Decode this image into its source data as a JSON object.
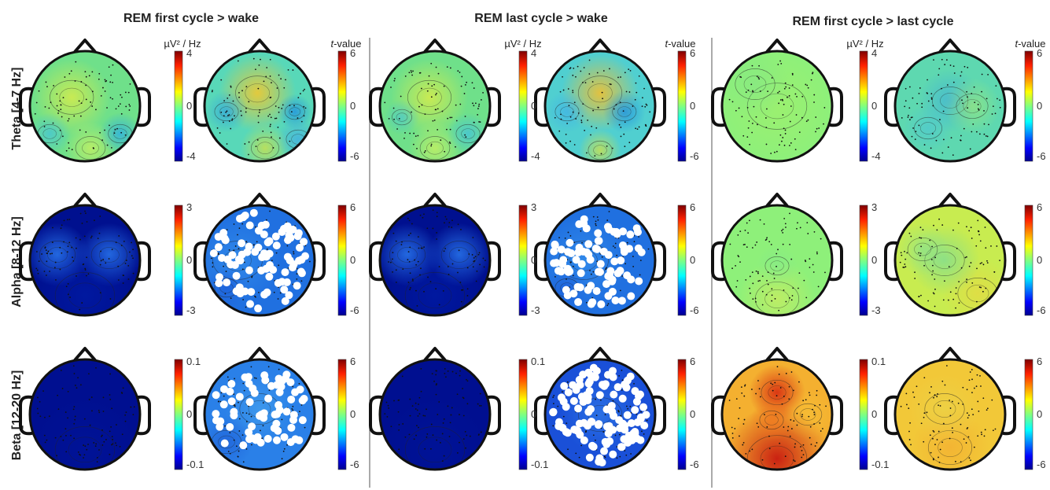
{
  "columns": [
    {
      "title": "REM first cycle > wake",
      "power_unit": "µV² / Hz",
      "t_unit_italic": "t",
      "t_unit_rest": "-value"
    },
    {
      "title": "REM last cycle > wake",
      "power_unit": "µV² / Hz",
      "t_unit_italic": "t",
      "t_unit_rest": "-value"
    },
    {
      "title": "REM first cycle > last cycle",
      "power_unit": "µV² / Hz",
      "t_unit_italic": "t",
      "t_unit_rest": "-value"
    }
  ],
  "rows": [
    {
      "label": "Theta [4-7 Hz]",
      "power_ticks": [
        "4",
        "0",
        "-4"
      ],
      "t_ticks": [
        "6",
        "0",
        "-6"
      ]
    },
    {
      "label": "Alpha [8-12 Hz]",
      "power_ticks": [
        "3",
        "0",
        "-3"
      ],
      "t_ticks": [
        "6",
        "0",
        "-6"
      ]
    },
    {
      "label": "Beta [12-20 Hz]",
      "power_ticks": [
        "0.1",
        "0",
        "-0.1"
      ],
      "t_ticks": [
        "6",
        "0",
        "-6"
      ]
    }
  ],
  "colormap": "jet",
  "colors": {
    "deep_blue": "#00008f",
    "blue": "#1a3fd6",
    "cyan": "#3ec8e6",
    "green": "#8af06e",
    "yellow": "#f2d43a",
    "orange": "#f08a1e",
    "red": "#c81a10"
  },
  "maps": [
    [
      {
        "base": "#6fe08a",
        "blobs": [
          [
            "#d8ec4a",
            0.38,
            0.42,
            0.22,
            0.85
          ],
          [
            "#c8f060",
            0.55,
            0.88,
            0.15,
            0.8
          ],
          [
            "#2fb0e0",
            0.82,
            0.75,
            0.12,
            0.85
          ],
          [
            "#40c0e0",
            0.18,
            0.75,
            0.12,
            0.7
          ]
        ],
        "sig": 0
      },
      {
        "base": "#58d8b8",
        "blobs": [
          [
            "#f2c830",
            0.48,
            0.38,
            0.22,
            0.9
          ],
          [
            "#2090e0",
            0.82,
            0.55,
            0.1,
            0.8
          ],
          [
            "#2fa0e0",
            0.2,
            0.55,
            0.12,
            0.7
          ],
          [
            "#c8e050",
            0.55,
            0.88,
            0.14,
            0.85
          ],
          [
            "#40a8e8",
            0.85,
            0.8,
            0.12,
            0.7
          ]
        ],
        "sig": 0
      },
      {
        "base": "#6fe08a",
        "blobs": [
          [
            "#d8ec4a",
            0.45,
            0.42,
            0.22,
            0.85
          ],
          [
            "#c8f060",
            0.5,
            0.88,
            0.15,
            0.8
          ],
          [
            "#40c0e0",
            0.8,
            0.75,
            0.12,
            0.75
          ],
          [
            "#40c0e0",
            0.2,
            0.6,
            0.1,
            0.6
          ]
        ],
        "sig": 0
      },
      {
        "base": "#50cfd0",
        "blobs": [
          [
            "#f2c030",
            0.5,
            0.38,
            0.22,
            0.9
          ],
          [
            "#2090e0",
            0.72,
            0.55,
            0.12,
            0.8
          ],
          [
            "#40b0e8",
            0.2,
            0.55,
            0.12,
            0.7
          ],
          [
            "#c8e050",
            0.5,
            0.9,
            0.12,
            0.85
          ]
        ],
        "sig": 0
      },
      {
        "base": "#8ef07a",
        "blobs": [
          [
            "#b0f060",
            0.5,
            0.5,
            0.3,
            0.4
          ],
          [
            "#78e090",
            0.3,
            0.3,
            0.2,
            0.4
          ]
        ],
        "sig": 0
      },
      {
        "base": "#5ed8b0",
        "blobs": [
          [
            "#3aa8e0",
            0.5,
            0.45,
            0.18,
            0.6
          ],
          [
            "#b8f060",
            0.7,
            0.5,
            0.16,
            0.5
          ],
          [
            "#48c0e0",
            0.3,
            0.7,
            0.14,
            0.5
          ]
        ],
        "sig": 0
      }
    ],
    [
      {
        "base": "#00108f",
        "blobs": [
          [
            "#2a7af0",
            0.25,
            0.45,
            0.18,
            0.85
          ],
          [
            "#2a7af0",
            0.72,
            0.45,
            0.18,
            0.85
          ],
          [
            "#0020b0",
            0.5,
            0.82,
            0.3,
            0.5
          ]
        ],
        "sig": 0
      },
      {
        "base": "#2070e0",
        "blobs": [
          [
            "#3a98f0",
            0.3,
            0.5,
            0.25,
            0.6
          ],
          [
            "#1a58d8",
            0.2,
            0.75,
            0.12,
            0.6
          ]
        ],
        "sig": 1
      },
      {
        "base": "#00108f",
        "blobs": [
          [
            "#2a7af0",
            0.25,
            0.45,
            0.18,
            0.85
          ],
          [
            "#2a7af0",
            0.72,
            0.45,
            0.18,
            0.85
          ],
          [
            "#0020b0",
            0.5,
            0.82,
            0.3,
            0.5
          ]
        ],
        "sig": 0
      },
      {
        "base": "#2070e0",
        "blobs": [
          [
            "#3a98f0",
            0.35,
            0.5,
            0.25,
            0.6
          ],
          [
            "#1a58d8",
            0.2,
            0.75,
            0.12,
            0.6
          ]
        ],
        "sig": 1
      },
      {
        "base": "#8ef07a",
        "blobs": [
          [
            "#c8ec60",
            0.5,
            0.85,
            0.22,
            0.8
          ],
          [
            "#80e890",
            0.5,
            0.55,
            0.12,
            0.5
          ]
        ],
        "sig": 0
      },
      {
        "base": "#c8ec50",
        "blobs": [
          [
            "#e8d840",
            0.75,
            0.8,
            0.2,
            0.7
          ],
          [
            "#68d8a8",
            0.45,
            0.5,
            0.2,
            0.6
          ],
          [
            "#78e0a0",
            0.25,
            0.4,
            0.15,
            0.5
          ]
        ],
        "sig": 0
      }
    ],
    [
      {
        "base": "#000f90",
        "blobs": [
          [
            "#0018a0",
            0.5,
            0.82,
            0.3,
            0.4
          ]
        ],
        "sig": 0
      },
      {
        "base": "#2a80e8",
        "blobs": [
          [
            "#50b0f0",
            0.5,
            0.45,
            0.2,
            0.5
          ],
          [
            "#1a50d0",
            0.2,
            0.75,
            0.15,
            0.5
          ]
        ],
        "sig": 2
      },
      {
        "base": "#000f90",
        "blobs": [
          [
            "#0018a0",
            0.5,
            0.82,
            0.3,
            0.4
          ]
        ],
        "sig": 0
      },
      {
        "base": "#1a50d8",
        "blobs": [
          [
            "#3a90f0",
            0.5,
            0.5,
            0.22,
            0.5
          ]
        ],
        "sig": 3
      },
      {
        "base": "#f4b030",
        "blobs": [
          [
            "#d82a10",
            0.5,
            0.3,
            0.16,
            0.9
          ],
          [
            "#c81a10",
            0.5,
            0.9,
            0.3,
            0.95
          ],
          [
            "#f07a20",
            0.45,
            0.55,
            0.12,
            0.8
          ],
          [
            "#f8c838",
            0.78,
            0.5,
            0.14,
            0.5
          ]
        ],
        "sig": 0
      },
      {
        "base": "#f2c838",
        "blobs": [
          [
            "#f4a830",
            0.5,
            0.8,
            0.22,
            0.6
          ],
          [
            "#e8d850",
            0.45,
            0.45,
            0.2,
            0.5
          ]
        ],
        "sig": 0
      }
    ]
  ]
}
